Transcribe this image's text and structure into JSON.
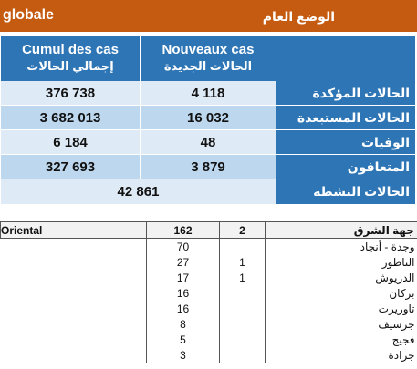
{
  "header": {
    "title_fr": "globale",
    "title_ar": "الوضع العام"
  },
  "summary": {
    "col_total_fr": "Cumul des cas",
    "col_total_ar": "إجمالي الحالات",
    "col_new_fr": "Nouveaux cas",
    "col_new_ar": "الحالات الجديدة",
    "rows": [
      {
        "label": "الحالات المؤكدة",
        "total": "376 738",
        "new": "4 118"
      },
      {
        "label": "الحالات المستبعدة",
        "total": "3 682 013",
        "new": "16 032"
      },
      {
        "label": "الوفيات",
        "total": "6 184",
        "new": "48"
      },
      {
        "label": "المتعافون",
        "total": "327 693",
        "new": "3 879"
      }
    ],
    "active": {
      "label": "الحالات النشطة",
      "value": "42 861"
    }
  },
  "region": {
    "name_fr": "Oriental",
    "name_ar": "جهة الشرق",
    "total": "162",
    "new": "2",
    "provinces": [
      {
        "name": "وجدة - أنجاد",
        "total": "70",
        "new": ""
      },
      {
        "name": "الناظور",
        "total": "27",
        "new": "1"
      },
      {
        "name": "الدريوش",
        "total": "17",
        "new": "1"
      },
      {
        "name": "بركان",
        "total": "16",
        "new": ""
      },
      {
        "name": "تاوريرت",
        "total": "16",
        "new": ""
      },
      {
        "name": "جرسيف",
        "total": "8",
        "new": ""
      },
      {
        "name": "فجيج",
        "total": "5",
        "new": ""
      },
      {
        "name": "جرادة",
        "total": "3",
        "new": ""
      }
    ]
  }
}
